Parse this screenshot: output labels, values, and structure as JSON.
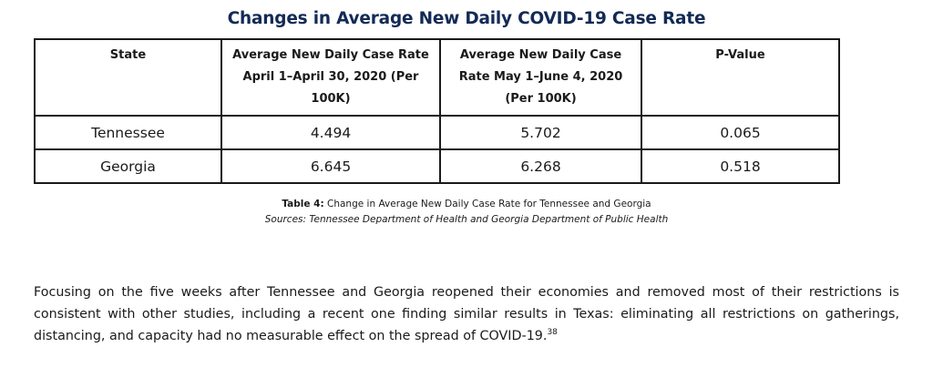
{
  "title": "Changes in Average New Daily COVID-19 Case Rate",
  "table": {
    "headers": [
      "State",
      "Average New Daily Case Rate April 1–April 30, 2020 (Per 100K)",
      "Average New Daily Case Rate May 1–June 4, 2020 (Per 100K)",
      "P-Value"
    ],
    "rows": [
      [
        "Tennessee",
        "4.494",
        "5.702",
        "0.065"
      ],
      [
        "Georgia",
        "6.645",
        "6.268",
        "0.518"
      ]
    ]
  },
  "caption": {
    "label": "Table 4:",
    "text": " Change in Average New Daily Case Rate for Tennessee and Georgia",
    "sources": "Sources: Tennessee Department of Health and Georgia Department of Public Health"
  },
  "paragraph": {
    "text": "Focusing on the five weeks after Tennessee and Georgia reopened their economies and removed most of their restrictions is consistent with other studies, including a recent one finding similar results in Texas: eliminating all restrictions on gatherings, distancing, and capacity had no measurable effect on the spread of COVID-19.",
    "footnote": "38"
  }
}
